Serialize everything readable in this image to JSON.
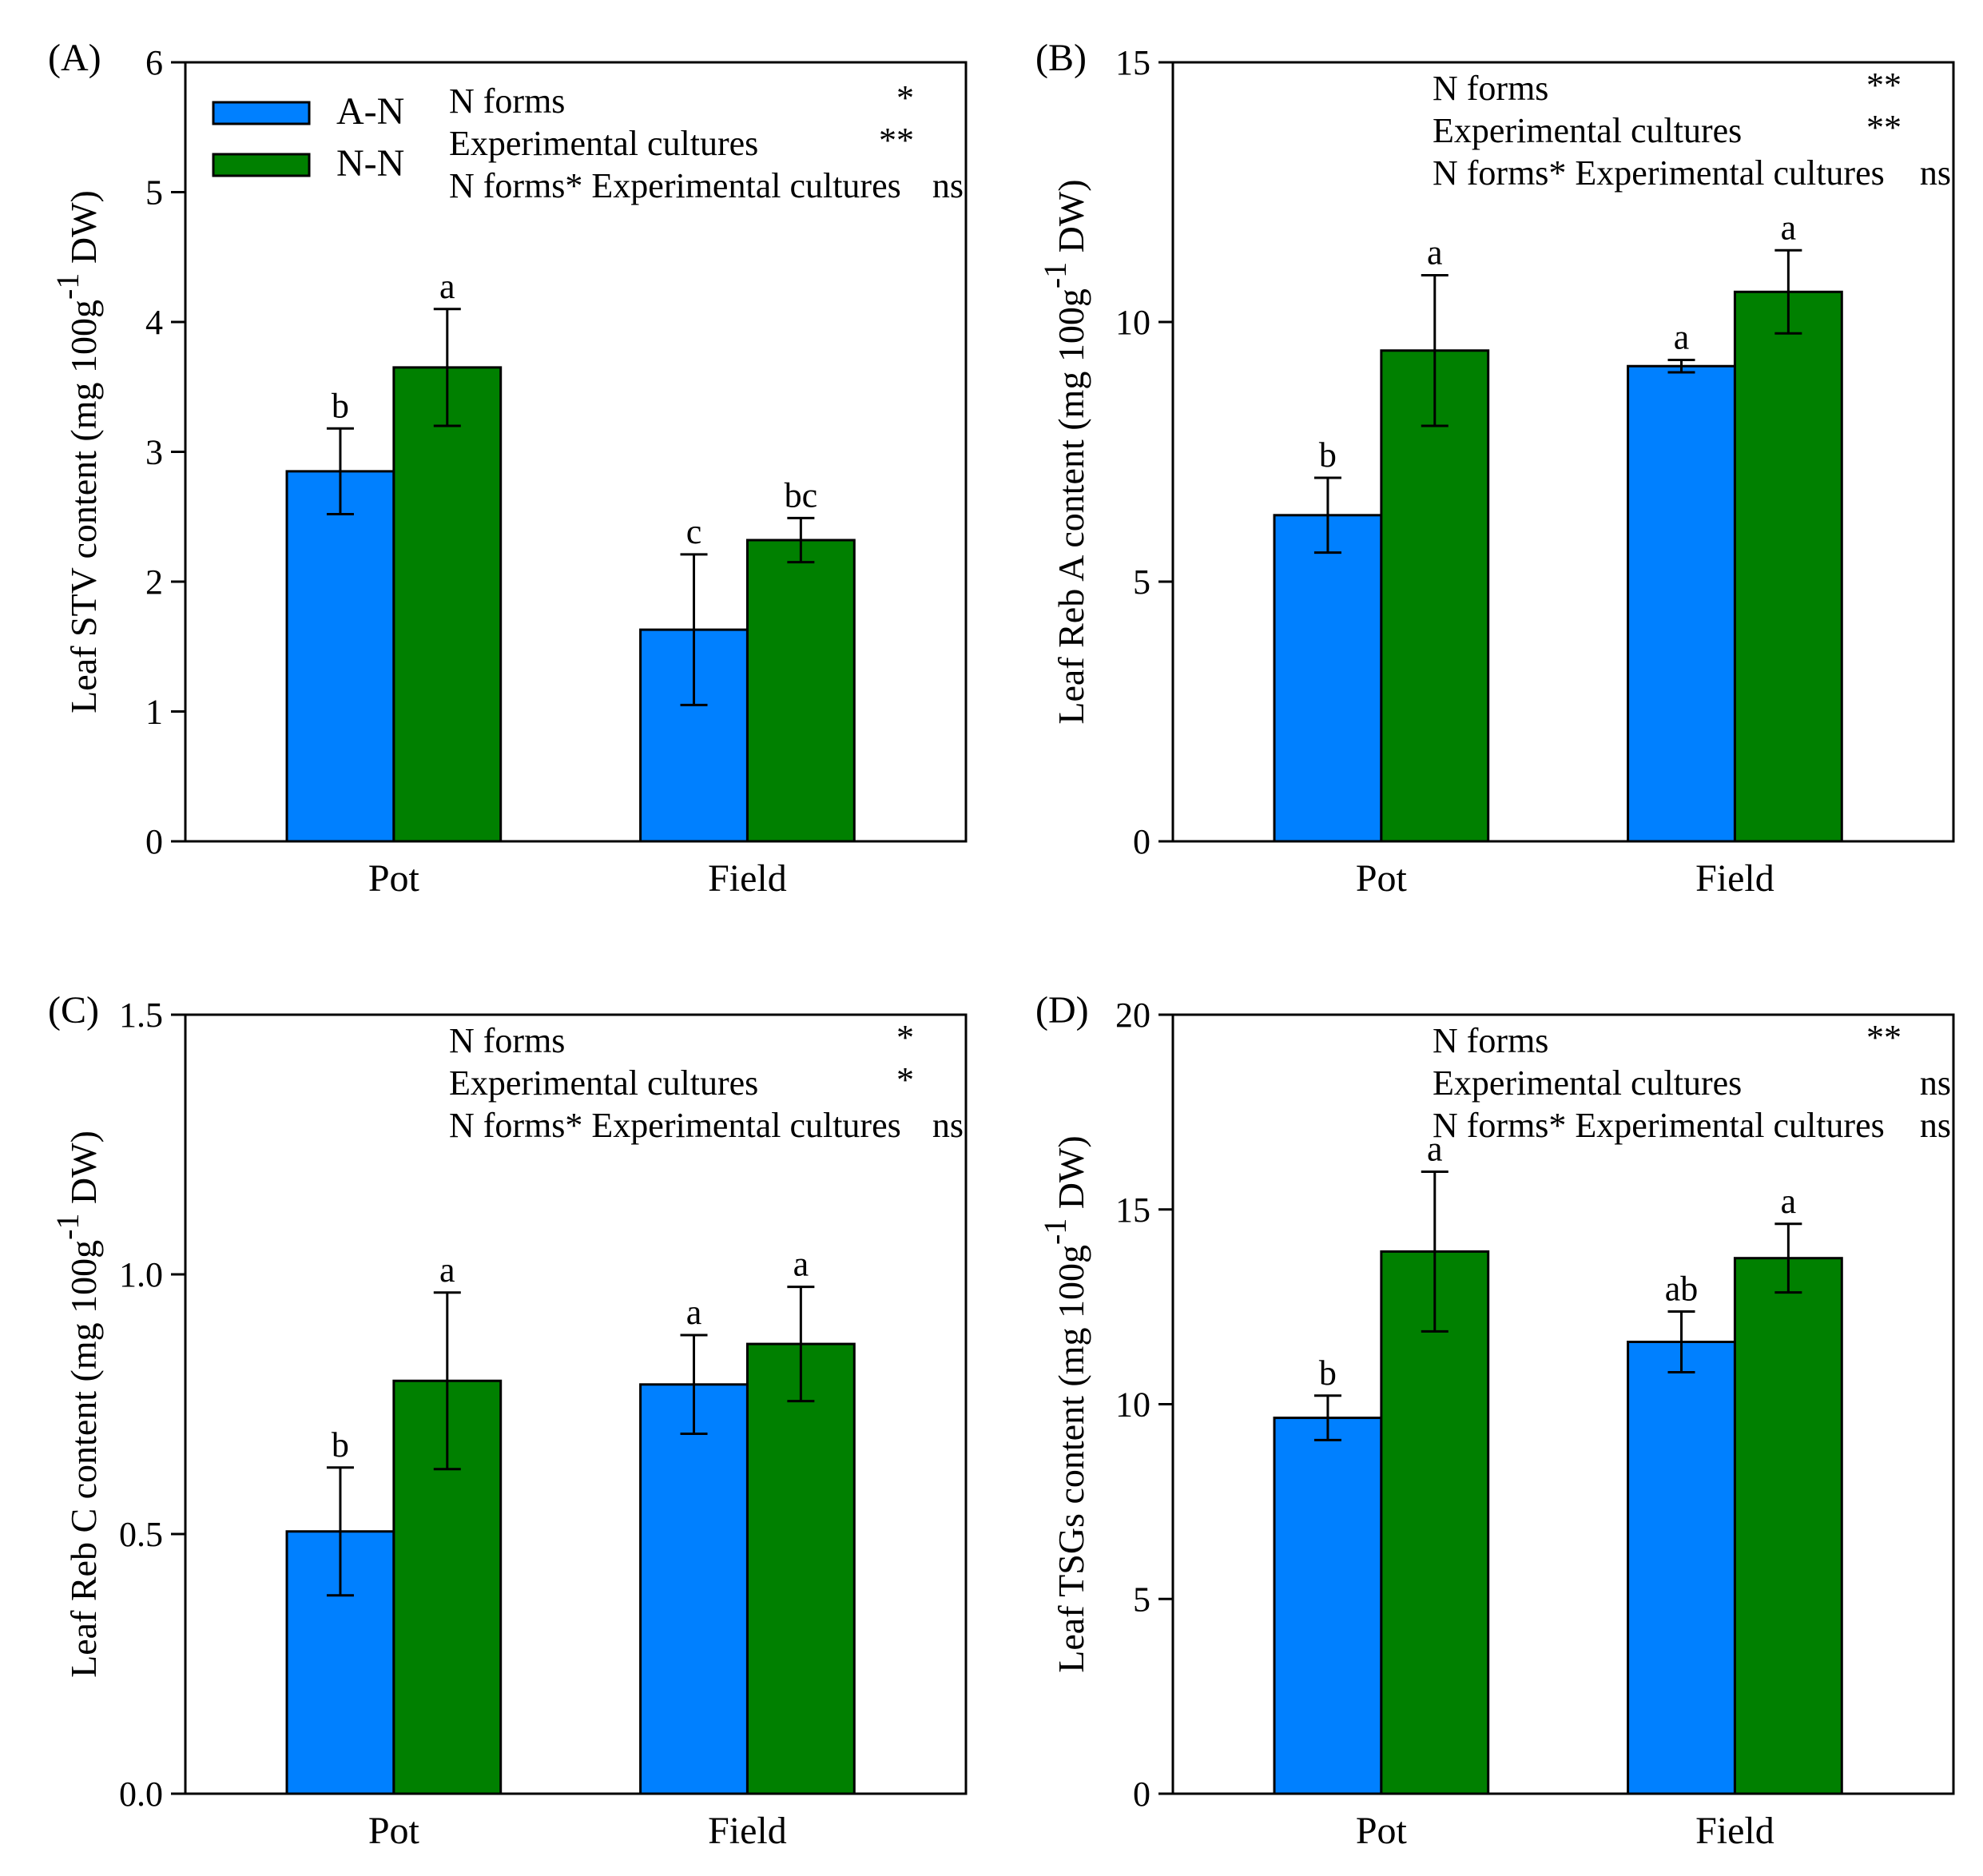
{
  "colors": {
    "a_n": "#0080FF",
    "n_n": "#008000",
    "axis": "#000000"
  },
  "legend": {
    "series": [
      "A-N",
      "N-N"
    ]
  },
  "chart_data": [
    {
      "panel": "(A)",
      "type": "bar",
      "ylabel_main": "Leaf STV content (mg 100g",
      "ylabel_sup": "-1",
      "ylabel_tail": " DW)",
      "categories": [
        "Pot",
        "Field"
      ],
      "ylim": [
        0,
        6
      ],
      "yticks": [
        0,
        1,
        2,
        3,
        4,
        5,
        6
      ],
      "ytick_labels": [
        "0",
        "1",
        "2",
        "3",
        "4",
        "5",
        "6"
      ],
      "series": [
        {
          "name": "A-N",
          "values": [
            2.85,
            1.63
          ],
          "errors": [
            0.33,
            0.58
          ],
          "letters": [
            "b",
            "c"
          ]
        },
        {
          "name": "N-N",
          "values": [
            3.65,
            2.32
          ],
          "errors": [
            0.45,
            0.17
          ],
          "letters": [
            "a",
            "bc"
          ]
        }
      ],
      "stats": [
        {
          "label": "N forms",
          "sig": "*"
        },
        {
          "label": "Experimental cultures",
          "sig": "**"
        },
        {
          "label": "N forms* Experimental cultures",
          "sig": "ns"
        }
      ],
      "legend_shown": true
    },
    {
      "panel": "(B)",
      "type": "bar",
      "ylabel_main": "Leaf Reb A content (mg 100g",
      "ylabel_sup": "-1",
      "ylabel_tail": " DW)",
      "categories": [
        "Pot",
        "Field"
      ],
      "ylim": [
        0,
        15
      ],
      "yticks": [
        0,
        5,
        10,
        15
      ],
      "ytick_labels": [
        "0",
        "5",
        "10",
        "15"
      ],
      "series": [
        {
          "name": "A-N",
          "values": [
            6.28,
            9.15
          ],
          "errors": [
            0.72,
            0.12
          ],
          "letters": [
            "b",
            "a"
          ]
        },
        {
          "name": "N-N",
          "values": [
            9.45,
            10.58
          ],
          "errors": [
            1.45,
            0.8
          ],
          "letters": [
            "a",
            "a"
          ]
        }
      ],
      "stats": [
        {
          "label": "N forms",
          "sig": "**"
        },
        {
          "label": "Experimental cultures",
          "sig": "**"
        },
        {
          "label": "N forms* Experimental cultures",
          "sig": "ns"
        }
      ],
      "legend_shown": false
    },
    {
      "panel": "(C)",
      "type": "bar",
      "ylabel_main": "Leaf Reb C content (mg 100g",
      "ylabel_sup": "-1",
      "ylabel_tail": " DW)",
      "categories": [
        "Pot",
        "Field"
      ],
      "ylim": [
        0,
        1.5
      ],
      "yticks": [
        0,
        0.5,
        1.0,
        1.5
      ],
      "ytick_labels": [
        "0.0",
        "0.5",
        "1.0",
        "1.5"
      ],
      "series": [
        {
          "name": "A-N",
          "values": [
            0.505,
            0.788
          ],
          "errors": [
            0.123,
            0.095
          ],
          "letters": [
            "b",
            "a"
          ]
        },
        {
          "name": "N-N",
          "values": [
            0.795,
            0.866
          ],
          "errors": [
            0.17,
            0.11
          ],
          "letters": [
            "a",
            "a"
          ]
        }
      ],
      "stats": [
        {
          "label": "N forms",
          "sig": "*"
        },
        {
          "label": "Experimental cultures",
          "sig": "*"
        },
        {
          "label": "N forms* Experimental cultures",
          "sig": "ns"
        }
      ],
      "legend_shown": false
    },
    {
      "panel": "(D)",
      "type": "bar",
      "ylabel_main": "Leaf TSGs content (mg 100g",
      "ylabel_sup": "-1",
      "ylabel_tail": " DW)",
      "categories": [
        "Pot",
        "Field"
      ],
      "ylim": [
        0,
        20
      ],
      "yticks": [
        0,
        5,
        10,
        15,
        20
      ],
      "ytick_labels": [
        "0",
        "5",
        "10",
        "15",
        "20"
      ],
      "series": [
        {
          "name": "A-N",
          "values": [
            9.65,
            11.6
          ],
          "errors": [
            0.57,
            0.78
          ],
          "letters": [
            "b",
            "ab"
          ]
        },
        {
          "name": "N-N",
          "values": [
            13.92,
            13.75
          ],
          "errors": [
            2.05,
            0.88
          ],
          "letters": [
            "a",
            "a"
          ]
        }
      ],
      "stats": [
        {
          "label": "N forms",
          "sig": "**"
        },
        {
          "label": "Experimental cultures",
          "sig": "ns"
        },
        {
          "label": "N forms* Experimental cultures",
          "sig": "ns"
        }
      ],
      "legend_shown": false
    }
  ]
}
